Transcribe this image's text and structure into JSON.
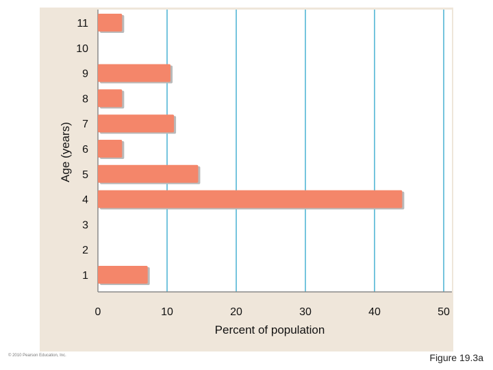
{
  "chart_data": {
    "type": "bar",
    "orientation": "horizontal",
    "categories": [
      "11",
      "10",
      "9",
      "8",
      "7",
      "6",
      "5",
      "4",
      "3",
      "2",
      "1"
    ],
    "values": [
      3.5,
      0,
      10.5,
      3.5,
      11,
      3.5,
      14.5,
      44,
      0,
      0,
      7.2
    ],
    "xlabel": "Percent of population",
    "ylabel": "Age (years)",
    "xlim": [
      0,
      50
    ],
    "xticks": [
      "0",
      "10",
      "20",
      "30",
      "40",
      "50"
    ],
    "grid": "vertical",
    "bar_color": "#f4866a",
    "grid_color": "#74c4dd",
    "plot_background": "#ffffff",
    "panel_background": "#efe6da"
  },
  "footer": {
    "copyright": "© 2010 Pearson Education, Inc.",
    "figure_label": "Figure 19.3a"
  }
}
